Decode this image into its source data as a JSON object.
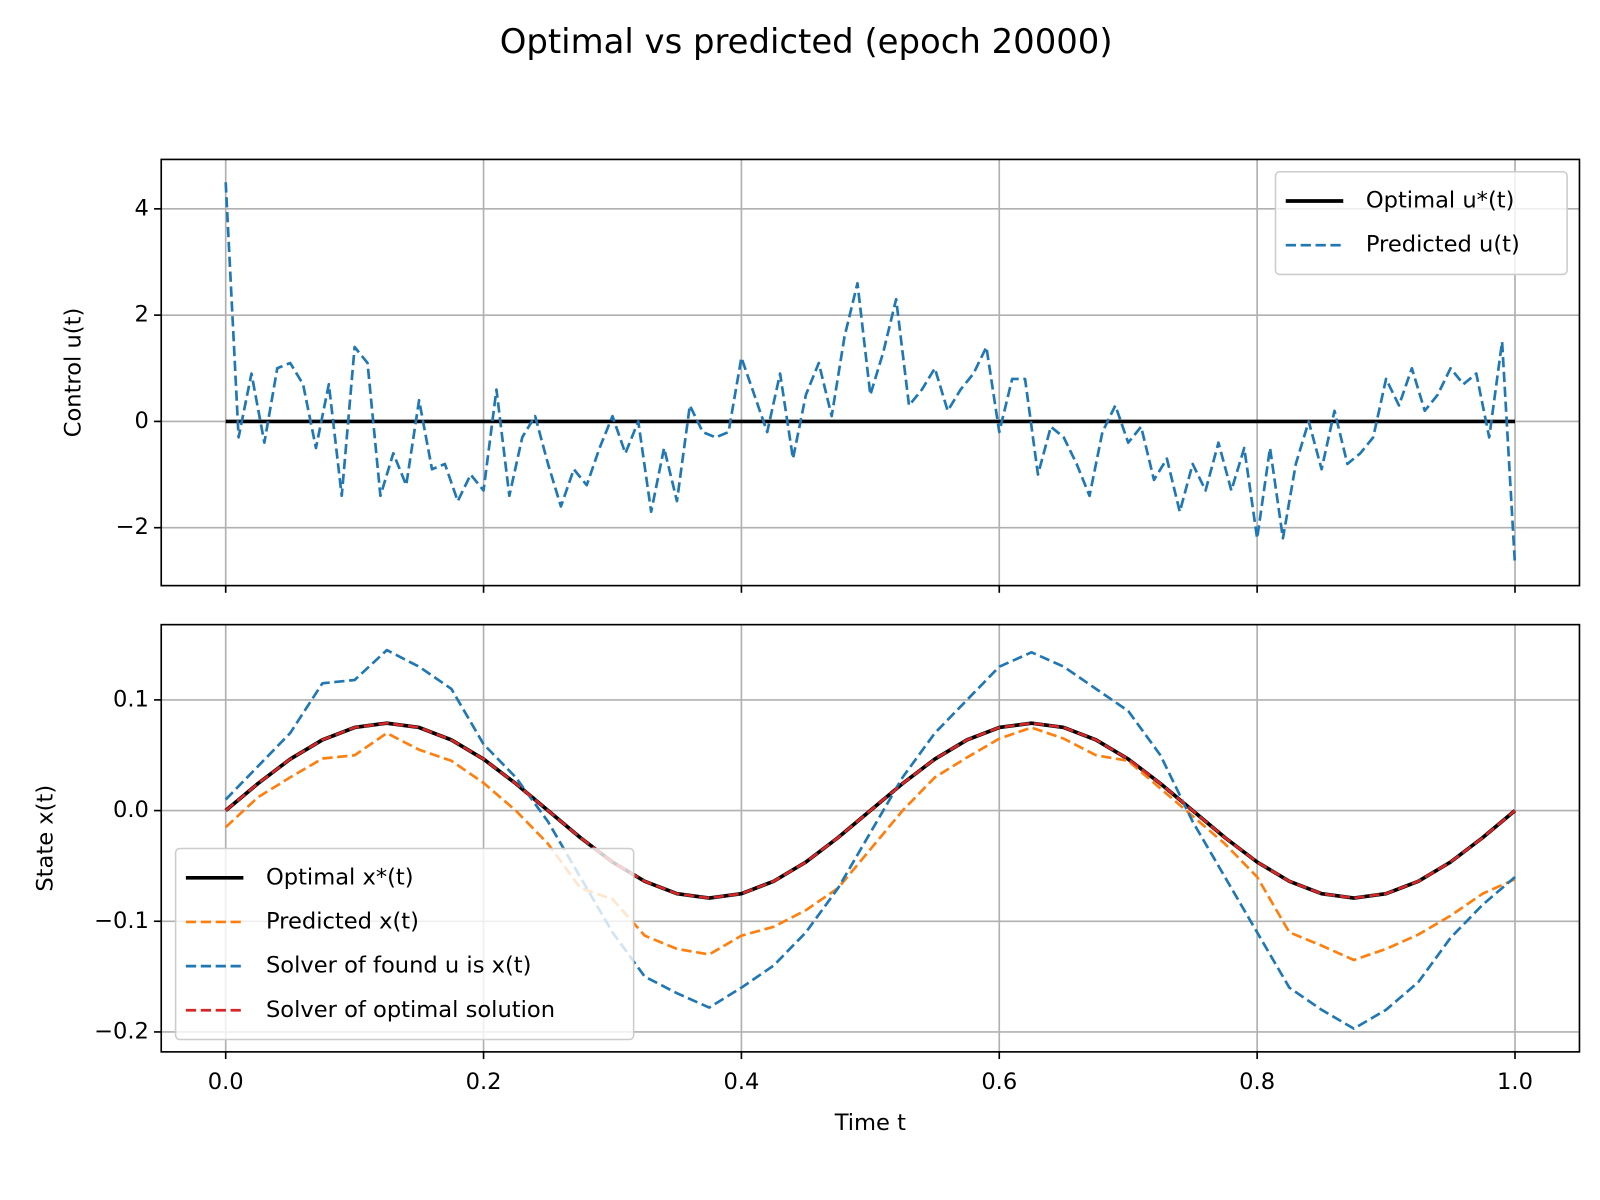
{
  "title": "Optimal vs predicted (epoch 20000)",
  "chart_data": [
    {
      "type": "line",
      "ylabel": "Control u(t)",
      "legend": "upper right",
      "grid": true,
      "xlim": [
        -0.05,
        1.05
      ],
      "ylim": [
        -3.09,
        4.93
      ],
      "xticks": [
        0,
        0.2,
        0.4,
        0.6,
        0.8,
        1
      ],
      "yticks": [
        {
          "value": -2,
          "label": "−2"
        },
        0,
        2,
        4
      ],
      "series": [
        {
          "name": "Optimal u*(t)",
          "color": "#000000",
          "dashed": false,
          "x": [
            0,
            1
          ],
          "values": [
            0,
            0
          ]
        },
        {
          "name": "Predicted u(t)",
          "color": "#1f77b4",
          "dashed": true,
          "x": [
            0,
            0.01,
            0.02,
            0.03,
            0.04,
            0.05,
            0.06,
            0.07,
            0.08,
            0.09,
            0.1,
            0.11,
            0.12,
            0.13,
            0.14,
            0.15,
            0.16,
            0.17,
            0.18,
            0.19,
            0.2,
            0.21,
            0.22,
            0.23,
            0.24,
            0.25,
            0.26,
            0.27,
            0.28,
            0.29,
            0.3,
            0.31,
            0.32,
            0.33,
            0.34,
            0.35,
            0.36,
            0.37,
            0.38,
            0.39,
            0.4,
            0.41,
            0.42,
            0.43,
            0.44,
            0.45,
            0.46,
            0.47,
            0.48,
            0.49,
            0.5,
            0.51,
            0.52,
            0.53,
            0.54,
            0.55,
            0.56,
            0.57,
            0.58,
            0.59,
            0.6,
            0.61,
            0.62,
            0.63,
            0.64,
            0.65,
            0.66,
            0.67,
            0.68,
            0.69,
            0.7,
            0.71,
            0.72,
            0.73,
            0.74,
            0.75,
            0.76,
            0.77,
            0.78,
            0.79,
            0.8,
            0.81,
            0.82,
            0.83,
            0.84,
            0.85,
            0.86,
            0.87,
            0.88,
            0.89,
            0.9,
            0.91,
            0.92,
            0.93,
            0.94,
            0.95,
            0.96,
            0.97,
            0.98,
            0.99,
            1
          ],
          "values": [
            4.5,
            -0.3,
            0.9,
            -0.4,
            1.0,
            1.1,
            0.7,
            -0.5,
            0.7,
            -1.4,
            1.4,
            1.1,
            -1.4,
            -0.6,
            -1.2,
            0.4,
            -0.9,
            -0.8,
            -1.5,
            -1.0,
            -1.3,
            0.6,
            -1.4,
            -0.3,
            0.1,
            -0.8,
            -1.6,
            -0.9,
            -1.2,
            -0.5,
            0.1,
            -0.6,
            0.0,
            -1.7,
            -0.5,
            -1.5,
            0.3,
            -0.2,
            -0.3,
            -0.2,
            1.2,
            0.5,
            -0.2,
            0.9,
            -0.7,
            0.5,
            1.1,
            0.1,
            1.6,
            2.6,
            0.5,
            1.3,
            2.3,
            0.3,
            0.6,
            1.0,
            0.2,
            0.6,
            0.9,
            1.4,
            -0.2,
            0.8,
            0.8,
            -1.0,
            -0.1,
            -0.3,
            -0.8,
            -1.4,
            -0.2,
            0.3,
            -0.4,
            -0.1,
            -1.1,
            -0.7,
            -1.7,
            -0.8,
            -1.3,
            -0.4,
            -1.3,
            -0.5,
            -2.2,
            -0.5,
            -2.2,
            -0.8,
            0.0,
            -0.9,
            0.2,
            -0.8,
            -0.6,
            -0.3,
            0.8,
            0.3,
            1.0,
            0.2,
            0.5,
            1.0,
            0.7,
            0.9,
            -0.3,
            1.5,
            -2.7
          ]
        }
      ]
    },
    {
      "type": "line",
      "xlabel": "Time t",
      "ylabel": "State x(t)",
      "legend": "lower left",
      "grid": true,
      "xlim": [
        -0.05,
        1.05
      ],
      "ylim": [
        -0.218,
        0.168
      ],
      "xticks": [
        {
          "value": 0,
          "label": "0.0"
        },
        {
          "value": 0.2,
          "label": "0.2"
        },
        {
          "value": 0.4,
          "label": "0.4"
        },
        {
          "value": 0.6,
          "label": "0.6"
        },
        {
          "value": 0.8,
          "label": "0.8"
        },
        {
          "value": 1,
          "label": "1.0"
        }
      ],
      "yticks": [
        {
          "value": -0.2,
          "label": "−0.2"
        },
        {
          "value": -0.1,
          "label": "−0.1"
        },
        {
          "value": 0,
          "label": "0.0"
        },
        {
          "value": 0.1,
          "label": "0.1"
        }
      ],
      "series": [
        {
          "name": "Optimal x*(t)",
          "color": "#000000",
          "dashed": false,
          "x": [
            0,
            0.025,
            0.05,
            0.075,
            0.1,
            0.125,
            0.15,
            0.175,
            0.2,
            0.225,
            0.25,
            0.275,
            0.3,
            0.325,
            0.35,
            0.375,
            0.4,
            0.425,
            0.45,
            0.475,
            0.5,
            0.525,
            0.55,
            0.575,
            0.6,
            0.625,
            0.65,
            0.675,
            0.7,
            0.725,
            0.75,
            0.775,
            0.8,
            0.825,
            0.85,
            0.875,
            0.9,
            0.925,
            0.95,
            0.975,
            1
          ],
          "values": [
            0,
            0.0244,
            0.0465,
            0.0639,
            0.0751,
            0.079,
            0.0751,
            0.0639,
            0.0465,
            0.0244,
            0,
            -0.0244,
            -0.0465,
            -0.0639,
            -0.0751,
            -0.079,
            -0.0751,
            -0.0639,
            -0.0465,
            -0.0244,
            0,
            0.0244,
            0.0465,
            0.0639,
            0.0751,
            0.079,
            0.0751,
            0.0639,
            0.0465,
            0.0244,
            0,
            -0.0244,
            -0.0465,
            -0.0639,
            -0.0751,
            -0.079,
            -0.0751,
            -0.0639,
            -0.0465,
            -0.0244,
            0
          ]
        },
        {
          "name": "Predicted x(t)",
          "color": "#ff7f0e",
          "dashed": true,
          "x": [
            0,
            0.025,
            0.05,
            0.075,
            0.1,
            0.125,
            0.15,
            0.175,
            0.2,
            0.225,
            0.25,
            0.275,
            0.3,
            0.325,
            0.35,
            0.375,
            0.4,
            0.425,
            0.45,
            0.475,
            0.5,
            0.525,
            0.55,
            0.575,
            0.6,
            0.625,
            0.65,
            0.675,
            0.7,
            0.725,
            0.75,
            0.775,
            0.8,
            0.825,
            0.85,
            0.875,
            0.9,
            0.925,
            0.95,
            0.975,
            1
          ],
          "values": [
            -0.015,
            0.012,
            0.03,
            0.047,
            0.05,
            0.07,
            0.055,
            0.045,
            0.025,
            0.0,
            -0.03,
            -0.07,
            -0.08,
            -0.113,
            -0.125,
            -0.13,
            -0.113,
            -0.105,
            -0.09,
            -0.07,
            -0.035,
            0.0,
            0.03,
            0.048,
            0.065,
            0.075,
            0.065,
            0.05,
            0.045,
            0.02,
            -0.005,
            -0.03,
            -0.06,
            -0.11,
            -0.122,
            -0.135,
            -0.125,
            -0.112,
            -0.095,
            -0.075,
            -0.062
          ]
        },
        {
          "name": "Solver of found u is x(t)",
          "color": "#1f77b4",
          "dashed": true,
          "x": [
            0,
            0.025,
            0.05,
            0.075,
            0.1,
            0.125,
            0.15,
            0.175,
            0.2,
            0.225,
            0.25,
            0.275,
            0.3,
            0.325,
            0.35,
            0.375,
            0.4,
            0.425,
            0.45,
            0.475,
            0.5,
            0.525,
            0.55,
            0.575,
            0.6,
            0.625,
            0.65,
            0.675,
            0.7,
            0.725,
            0.75,
            0.775,
            0.8,
            0.825,
            0.85,
            0.875,
            0.9,
            0.925,
            0.95,
            0.975,
            1
          ],
          "values": [
            0.01,
            0.04,
            0.07,
            0.115,
            0.118,
            0.145,
            0.13,
            0.11,
            0.06,
            0.03,
            -0.01,
            -0.06,
            -0.11,
            -0.15,
            -0.165,
            -0.178,
            -0.16,
            -0.14,
            -0.11,
            -0.07,
            -0.02,
            0.03,
            0.07,
            0.1,
            0.13,
            0.143,
            0.13,
            0.11,
            0.09,
            0.05,
            -0.01,
            -0.06,
            -0.11,
            -0.16,
            -0.18,
            -0.197,
            -0.18,
            -0.155,
            -0.115,
            -0.085,
            -0.06
          ]
        },
        {
          "name": "Solver of optimal solution",
          "color": "#d62728",
          "dashed": true,
          "x": [
            0,
            0.025,
            0.05,
            0.075,
            0.1,
            0.125,
            0.15,
            0.175,
            0.2,
            0.225,
            0.25,
            0.275,
            0.3,
            0.325,
            0.35,
            0.375,
            0.4,
            0.425,
            0.45,
            0.475,
            0.5,
            0.525,
            0.55,
            0.575,
            0.6,
            0.625,
            0.65,
            0.675,
            0.7,
            0.725,
            0.75,
            0.775,
            0.8,
            0.825,
            0.85,
            0.875,
            0.9,
            0.925,
            0.95,
            0.975,
            1
          ],
          "values": [
            0,
            0.0244,
            0.0465,
            0.0639,
            0.0751,
            0.079,
            0.0751,
            0.0639,
            0.0465,
            0.0244,
            0,
            -0.0244,
            -0.0465,
            -0.0639,
            -0.0751,
            -0.079,
            -0.0751,
            -0.0639,
            -0.0465,
            -0.0244,
            0,
            0.0244,
            0.0465,
            0.0639,
            0.0751,
            0.079,
            0.0751,
            0.0639,
            0.0465,
            0.0244,
            0,
            -0.0244,
            -0.0465,
            -0.0639,
            -0.0751,
            -0.079,
            -0.0751,
            -0.0639,
            -0.0465,
            -0.0244,
            0
          ]
        }
      ]
    }
  ]
}
